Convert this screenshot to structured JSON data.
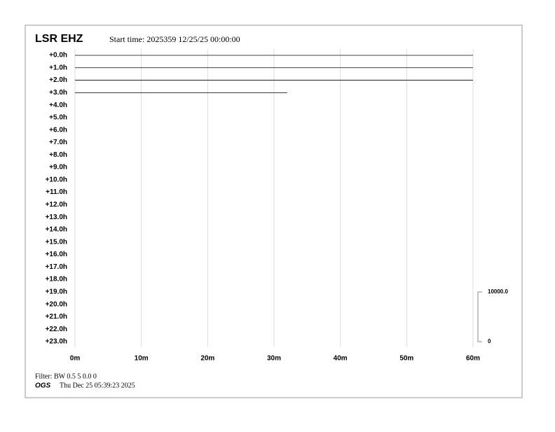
{
  "chart_data": {
    "type": "helicorder",
    "title": "LSR EHZ",
    "subtitle": "Start time: 2025359 12/25/25 00:00:00",
    "categories": [
      "+0.0h",
      "+1.0h",
      "+2.0h",
      "+3.0h",
      "+4.0h",
      "+5.0h",
      "+6.0h",
      "+7.0h",
      "+8.0h",
      "+9.0h",
      "+10.0h",
      "+11.0h",
      "+12.0h",
      "+13.0h",
      "+14.0h",
      "+15.0h",
      "+16.0h",
      "+17.0h",
      "+18.0h",
      "+19.0h",
      "+20.0h",
      "+21.0h",
      "+22.0h",
      "+23.0h"
    ],
    "values": [
      60,
      60,
      60,
      32,
      null,
      null,
      null,
      null,
      null,
      null,
      null,
      null,
      null,
      null,
      null,
      null,
      null,
      null,
      null,
      null,
      null,
      null,
      null,
      null
    ],
    "color": "#000000",
    "xlim": [
      0,
      60
    ],
    "xticks": [
      {
        "value": 0,
        "label": "0m"
      },
      {
        "value": 10,
        "label": "10m"
      },
      {
        "value": 20,
        "label": "20m"
      },
      {
        "value": 30,
        "label": "30m"
      },
      {
        "value": 40,
        "label": "40m"
      },
      {
        "value": 50,
        "label": "50m"
      },
      {
        "value": 60,
        "label": "60m"
      }
    ],
    "grid": true,
    "scale_lim": [
      0,
      10000
    ],
    "scale_ticks": [
      {
        "value": 10000,
        "label": "10000.0"
      },
      0
    ],
    "filter": "Filter: BW 0.5 5 0.0 0",
    "agency": "OGS",
    "timestamp": "Thu Dec 25 05:39:23 2025"
  }
}
